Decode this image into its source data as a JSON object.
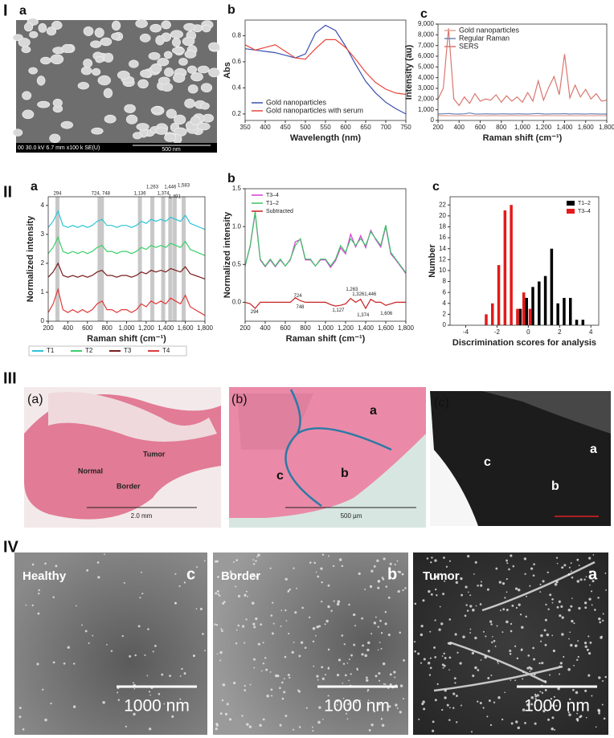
{
  "sections": [
    "I",
    "II",
    "III",
    "IV"
  ],
  "sem_image": {
    "label": "a",
    "info": "00 30.0 kV 6.7 mm x100 k SE(U)",
    "scale": "500 nm"
  },
  "chart_data": [
    {
      "type": "line",
      "label": "b",
      "xlabel": "Wavelength (nm)",
      "ylabel": "Abs",
      "legend": "lower left",
      "x": [
        350,
        375,
        400,
        425,
        450,
        475,
        500,
        525,
        550,
        575,
        600,
        625,
        650,
        675,
        700,
        725,
        750
      ],
      "series": [
        {
          "name": "Gold nanoparticles",
          "color": "#3b4fb0",
          "values": [
            0.7,
            0.69,
            0.68,
            0.67,
            0.65,
            0.63,
            0.66,
            0.82,
            0.88,
            0.84,
            0.72,
            0.58,
            0.45,
            0.36,
            0.29,
            0.24,
            0.2
          ]
        },
        {
          "name": "Gold nanoparticles with serum",
          "color": "#e8453c",
          "values": [
            0.73,
            0.69,
            0.71,
            0.73,
            0.68,
            0.63,
            0.62,
            0.7,
            0.77,
            0.77,
            0.71,
            0.62,
            0.52,
            0.44,
            0.39,
            0.36,
            0.35
          ]
        }
      ],
      "xlim": [
        350,
        750
      ],
      "xticks": [
        350,
        400,
        450,
        500,
        550,
        600,
        650,
        700,
        750
      ],
      "ylim": [
        0.15,
        0.92
      ],
      "yticks": [
        0.2,
        0.4,
        0.6,
        0.8
      ]
    },
    {
      "type": "line",
      "label": "c",
      "xlabel": "Raman shift (cm⁻¹)",
      "ylabel": "Intensity (au)",
      "legend": "upper left",
      "x": [
        200,
        250,
        300,
        350,
        400,
        450,
        500,
        550,
        600,
        650,
        700,
        750,
        800,
        850,
        900,
        950,
        1000,
        1050,
        1100,
        1150,
        1200,
        1250,
        1300,
        1350,
        1400,
        1450,
        1500,
        1550,
        1600,
        1650,
        1700,
        1750,
        1800
      ],
      "series": [
        {
          "name": "Gold nanoparticles",
          "color": "#e8a49a",
          "values": [
            450,
            460,
            450,
            440,
            450,
            460,
            450,
            450,
            440,
            450,
            460,
            450,
            450,
            440,
            450,
            460,
            450,
            450,
            440,
            450,
            460,
            450,
            450,
            440,
            450,
            460,
            450,
            450,
            440,
            450,
            460,
            450,
            450
          ]
        },
        {
          "name": "Regular Raman",
          "color": "#6d86b8",
          "values": [
            600,
            620,
            650,
            610,
            600,
            620,
            700,
            610,
            600,
            620,
            610,
            600,
            620,
            610,
            600,
            620,
            610,
            600,
            620,
            650,
            610,
            600,
            620,
            610,
            640,
            600,
            620,
            610,
            600,
            620,
            610,
            600,
            600
          ]
        },
        {
          "name": "SERS",
          "color": "#d9776e",
          "values": [
            2000,
            3000,
            8600,
            2000,
            1400,
            2200,
            1600,
            2500,
            1800,
            2000,
            1900,
            2400,
            1700,
            2300,
            1800,
            2200,
            1700,
            2600,
            1800,
            3700,
            1900,
            3100,
            4100,
            2400,
            6200,
            2100,
            3300,
            2200,
            2900,
            2000,
            2500,
            1800,
            1900
          ]
        }
      ],
      "xlim": [
        200,
        1800
      ],
      "xticks": [
        200,
        400,
        600,
        800,
        {
          "value": 1000,
          "label": "1,000"
        },
        {
          "value": 1200,
          "label": "1,200"
        },
        {
          "value": 1400,
          "label": "1,400"
        },
        {
          "value": 1600,
          "label": "1,600"
        },
        {
          "value": 1800,
          "label": "1,800"
        }
      ],
      "ylim": [
        0,
        9000
      ],
      "yticks": [
        0,
        {
          "value": 1000,
          "label": "1,000"
        },
        {
          "value": 2000,
          "label": "2,000"
        },
        {
          "value": 3000,
          "label": "3,000"
        },
        {
          "value": 4000,
          "label": "4,000"
        },
        {
          "value": 5000,
          "label": "5,000"
        },
        {
          "value": 6000,
          "label": "6,000"
        },
        {
          "value": 7000,
          "label": "7,000"
        },
        {
          "value": 8000,
          "label": "8,000"
        },
        {
          "value": 9000,
          "label": "9,000"
        }
      ]
    },
    {
      "type": "line",
      "label": "a",
      "xlabel": "Raman shift (cm⁻¹)",
      "ylabel": "Normalized intensity",
      "legend": "bottom",
      "x": [
        200,
        250,
        300,
        350,
        400,
        450,
        500,
        550,
        600,
        650,
        700,
        750,
        800,
        850,
        900,
        950,
        1000,
        1050,
        1100,
        1150,
        1200,
        1250,
        1300,
        1350,
        1400,
        1450,
        1500,
        1550,
        1600,
        1650,
        1700,
        1750,
        1800
      ],
      "peaks": [
        294,
        724,
        748,
        1136,
        1263,
        1374,
        1446,
        1491,
        1583
      ],
      "peak_labels": [
        "294",
        "724, 748",
        "1,136",
        "1,263",
        "1,374",
        "1,446",
        "1,491",
        "1,583"
      ],
      "series": [
        {
          "name": "T1",
          "color": "#2ec4d6",
          "values": [
            3.24,
            3.45,
            3.8,
            3.31,
            3.24,
            3.31,
            3.24,
            3.31,
            3.24,
            3.31,
            3.45,
            3.52,
            3.31,
            3.31,
            3.24,
            3.31,
            3.31,
            3.24,
            3.31,
            3.45,
            3.38,
            3.52,
            3.45,
            3.52,
            3.45,
            3.59,
            3.52,
            3.45,
            3.66,
            3.38,
            3.31,
            3.24,
            3.17
          ]
        },
        {
          "name": "T2",
          "color": "#3ccf6a",
          "values": [
            2.34,
            2.55,
            2.9,
            2.41,
            2.34,
            2.41,
            2.34,
            2.41,
            2.34,
            2.41,
            2.55,
            2.62,
            2.41,
            2.41,
            2.34,
            2.41,
            2.41,
            2.34,
            2.41,
            2.55,
            2.48,
            2.62,
            2.55,
            2.62,
            2.55,
            2.69,
            2.62,
            2.55,
            2.76,
            2.48,
            2.41,
            2.34,
            2.27
          ]
        },
        {
          "name": "T3",
          "color": "#7a1f1f",
          "values": [
            1.52,
            1.7,
            2.0,
            1.58,
            1.52,
            1.58,
            1.52,
            1.58,
            1.52,
            1.58,
            1.7,
            1.76,
            1.58,
            1.58,
            1.52,
            1.58,
            1.58,
            1.52,
            1.58,
            1.7,
            1.64,
            1.76,
            1.7,
            1.76,
            1.7,
            1.82,
            1.76,
            1.7,
            1.88,
            1.64,
            1.58,
            1.52,
            1.46
          ]
        },
        {
          "name": "T4",
          "color": "#e03b3b",
          "values": [
            0.3,
            0.6,
            1.1,
            0.4,
            0.3,
            0.4,
            0.3,
            0.4,
            0.3,
            0.4,
            0.6,
            0.7,
            0.4,
            0.4,
            0.3,
            0.4,
            0.4,
            0.3,
            0.4,
            0.6,
            0.5,
            0.7,
            0.6,
            0.7,
            0.6,
            0.8,
            0.7,
            0.6,
            0.9,
            0.5,
            0.4,
            0.3,
            0.2
          ]
        }
      ],
      "xlim": [
        200,
        1800
      ],
      "xticks": [
        200,
        400,
        600,
        800,
        {
          "value": 1000,
          "label": "1,000"
        },
        {
          "value": 1200,
          "label": "1,200"
        },
        {
          "value": 1400,
          "label": "1,400"
        },
        {
          "value": 1600,
          "label": "1,600"
        },
        {
          "value": 1800,
          "label": "1,800"
        }
      ],
      "ylim": [
        0,
        4.3
      ],
      "yticks": [
        0,
        1,
        2,
        3,
        4
      ]
    },
    {
      "type": "line",
      "label": "b",
      "xlabel": "Raman shift (cm⁻¹)",
      "ylabel": "Normalized intensity",
      "legend": "upper left",
      "x": [
        200,
        250,
        300,
        350,
        400,
        450,
        500,
        550,
        600,
        650,
        700,
        750,
        800,
        850,
        900,
        950,
        1000,
        1050,
        1100,
        1150,
        1200,
        1250,
        1300,
        1350,
        1400,
        1450,
        1500,
        1550,
        1600,
        1650,
        1700,
        1750,
        1800
      ],
      "annotations": [
        {
          "value": 294,
          "label": "294"
        },
        {
          "value": 724,
          "label": "724"
        },
        {
          "value": 748,
          "label": "748"
        },
        {
          "value": 1127,
          "label": "1,127"
        },
        {
          "value": 1263,
          "label": "1,263"
        },
        {
          "value": 1326,
          "label": "1,326"
        },
        {
          "value": 1374,
          "label": "1,374"
        },
        {
          "value": 1446,
          "label": "1,446"
        },
        {
          "value": 1606,
          "label": "1,606"
        }
      ],
      "series": [
        {
          "name": "T3–4",
          "color": "#d63ad6",
          "values": [
            0.48,
            0.74,
            1.18,
            0.56,
            0.47,
            0.56,
            0.47,
            0.56,
            0.48,
            0.56,
            0.8,
            0.83,
            0.56,
            0.56,
            0.48,
            0.56,
            0.56,
            0.46,
            0.55,
            0.72,
            0.64,
            0.9,
            0.73,
            0.88,
            0.72,
            0.95,
            0.83,
            0.73,
            1.0,
            0.64,
            0.56,
            0.47,
            0.38
          ]
        },
        {
          "name": "T1–2",
          "color": "#3cc464",
          "values": [
            0.48,
            0.75,
            1.2,
            0.57,
            0.48,
            0.57,
            0.48,
            0.57,
            0.48,
            0.57,
            0.75,
            0.84,
            0.57,
            0.57,
            0.48,
            0.57,
            0.57,
            0.48,
            0.57,
            0.75,
            0.66,
            0.84,
            0.75,
            0.84,
            0.75,
            0.93,
            0.84,
            0.75,
            1.02,
            0.66,
            0.57,
            0.48,
            0.39
          ]
        },
        {
          "name": "Subtracted",
          "color": "#c82020",
          "values": [
            0,
            -0.02,
            -0.08,
            0,
            0,
            0,
            0,
            0,
            0,
            0,
            0.06,
            0.02,
            0,
            0,
            0,
            0,
            0,
            -0.03,
            -0.05,
            -0.04,
            -0.02,
            0.05,
            0,
            0.04,
            -0.08,
            0.04,
            0,
            0,
            -0.04,
            -0.02,
            0,
            0,
            0
          ]
        }
      ],
      "xlim": [
        200,
        1800
      ],
      "xticks": [
        200,
        400,
        600,
        800,
        {
          "value": 1000,
          "label": "1,000"
        },
        {
          "value": 1200,
          "label": "1,200"
        },
        {
          "value": 1400,
          "label": "1,400"
        },
        {
          "value": 1600,
          "label": "1,600"
        },
        {
          "value": 1800,
          "label": "1,800"
        }
      ],
      "ylim": [
        -0.25,
        1.5
      ],
      "yticks": [
        {
          "value": 0,
          "label": "0.0"
        },
        {
          "value": 0.5,
          "label": "0.5"
        },
        {
          "value": 1,
          "label": "1.0"
        },
        {
          "value": 1.5,
          "label": "1.5"
        }
      ]
    },
    {
      "type": "bar",
      "label": "c",
      "xlabel": "Discrimination scores for analysis",
      "ylabel": "Number",
      "legend": "upper right",
      "x": [
        -2.6,
        -2.2,
        -1.8,
        -1.4,
        -1.0,
        -0.6,
        -0.2,
        0.2,
        0.6,
        1.0,
        1.4,
        1.8,
        2.2,
        2.6,
        3.0,
        3.4,
        3.8
      ],
      "series": [
        {
          "name": "T1–2",
          "color": "#000000",
          "values": [
            0,
            0,
            0,
            0,
            0,
            3,
            5,
            7,
            8,
            9,
            14,
            4,
            5,
            5,
            1,
            1,
            0
          ]
        },
        {
          "name": "T3–4",
          "color": "#e41a1a",
          "values": [
            2,
            4,
            11,
            21,
            22,
            3,
            6,
            3,
            0,
            0,
            0,
            0,
            0,
            0,
            0,
            0,
            0
          ]
        }
      ],
      "xlim": [
        -5,
        4.5
      ],
      "xticks": [
        -4,
        -2,
        0,
        2,
        4
      ],
      "ylim": [
        0,
        23.5
      ],
      "yticks": [
        0,
        2,
        4,
        6,
        8,
        10,
        12,
        14,
        16,
        18,
        20,
        22
      ]
    }
  ],
  "histology": [
    {
      "label": "(a)",
      "regions": [
        "Normal",
        "Tumor",
        "Border"
      ],
      "scale": "2.0 mm"
    },
    {
      "label": "(b)",
      "regions": [
        "a",
        "b",
        "c"
      ],
      "scale": "500 µm"
    },
    {
      "label": "(c)",
      "regions": [
        "c",
        "a",
        "b"
      ]
    }
  ],
  "sem_maps": [
    {
      "region": "Healthy",
      "label": "c",
      "scale": "1000 nm"
    },
    {
      "region": "Border",
      "label": "b",
      "scale": "1000 nm"
    },
    {
      "region": "Tumor",
      "label": "a",
      "scale": "1000 nm"
    }
  ]
}
